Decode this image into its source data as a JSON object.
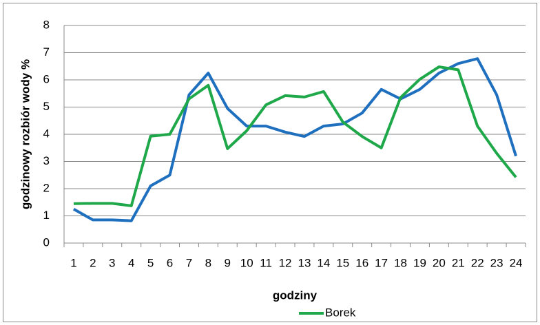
{
  "chart_data": {
    "type": "line",
    "x_label": "godziny",
    "y_label": "godzinowy rozbiór wody %",
    "categories": [
      "1",
      "2",
      "3",
      "4",
      "5",
      "6",
      "7",
      "8",
      "9",
      "10",
      "11",
      "12",
      "13",
      "14",
      "15",
      "16",
      "17",
      "18",
      "19",
      "20",
      "21",
      "22",
      "23",
      "24"
    ],
    "series": [
      {
        "color": "#1f6fbf",
        "values": [
          1.25,
          0.85,
          0.85,
          0.82,
          2.1,
          2.5,
          5.45,
          6.25,
          4.95,
          4.3,
          4.3,
          4.08,
          3.92,
          4.3,
          4.38,
          4.78,
          5.65,
          5.3,
          5.65,
          6.25,
          6.6,
          6.78,
          5.45,
          3.2
        ]
      },
      {
        "name": "Borek",
        "color": "#1fa84a",
        "values": [
          1.45,
          1.46,
          1.46,
          1.37,
          3.93,
          4.0,
          5.3,
          5.8,
          3.47,
          4.13,
          5.08,
          5.42,
          5.37,
          5.57,
          4.45,
          3.92,
          3.5,
          5.35,
          6.02,
          6.48,
          6.37,
          4.3,
          3.3,
          2.42
        ]
      }
    ],
    "ylim": [
      0,
      8
    ],
    "yticks": [
      0,
      1,
      2,
      3,
      4,
      5,
      6,
      7,
      8
    ],
    "grid": true,
    "legend": "bottom"
  }
}
